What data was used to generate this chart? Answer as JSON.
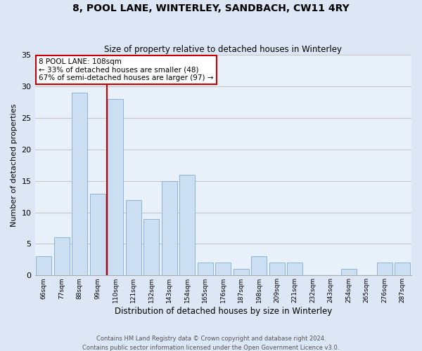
{
  "title": "8, POOL LANE, WINTERLEY, SANDBACH, CW11 4RY",
  "subtitle": "Size of property relative to detached houses in Winterley",
  "xlabel": "Distribution of detached houses by size in Winterley",
  "ylabel": "Number of detached properties",
  "bin_labels": [
    "66sqm",
    "77sqm",
    "88sqm",
    "99sqm",
    "110sqm",
    "121sqm",
    "132sqm",
    "143sqm",
    "154sqm",
    "165sqm",
    "176sqm",
    "187sqm",
    "198sqm",
    "209sqm",
    "221sqm",
    "232sqm",
    "243sqm",
    "254sqm",
    "265sqm",
    "276sqm",
    "287sqm"
  ],
  "bar_centers": [
    0,
    1,
    2,
    3,
    4,
    5,
    6,
    7,
    8,
    9,
    10,
    11,
    12,
    13,
    14,
    15,
    16,
    17,
    18,
    19,
    20
  ],
  "bar_heights": [
    3,
    6,
    29,
    13,
    28,
    12,
    9,
    15,
    16,
    2,
    2,
    1,
    3,
    2,
    2,
    0,
    0,
    1,
    0,
    2,
    2
  ],
  "bar_color": "#ccdff2",
  "bar_edgecolor": "#8ab4d8",
  "vline_idx": 4,
  "vline_color": "#cc0000",
  "annotation_box_text": "8 POOL LANE: 108sqm\n← 33% of detached houses are smaller (48)\n67% of semi-detached houses are larger (97) →",
  "annotation_box_edgecolor": "#cc0000",
  "ylim": [
    0,
    35
  ],
  "yticks": [
    0,
    5,
    10,
    15,
    20,
    25,
    30,
    35
  ],
  "grid_color": "#c8c8c8",
  "bg_color": "#dce6f5",
  "plot_bg_color": "#e8f0fa",
  "footer_line1": "Contains HM Land Registry data © Crown copyright and database right 2024.",
  "footer_line2": "Contains public sector information licensed under the Open Government Licence v3.0."
}
